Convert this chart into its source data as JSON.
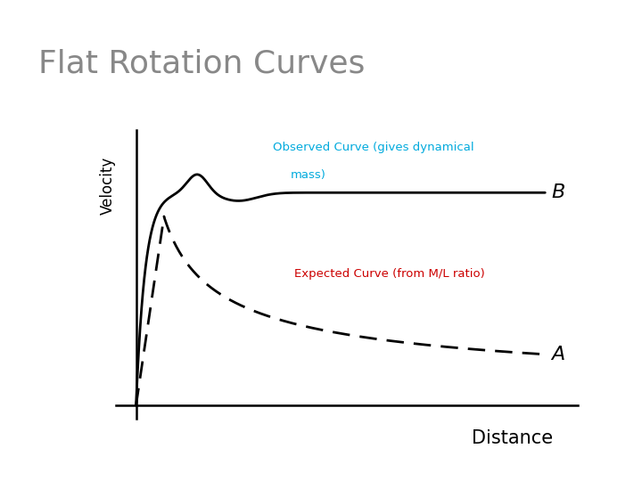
{
  "title": "Flat Rotation Curves",
  "title_color": "#888888",
  "title_fontsize": 26,
  "xlabel": "Distance",
  "ylabel": "Velocity",
  "xlabel_fontsize": 15,
  "ylabel_fontsize": 12,
  "background_color": "#ffffff",
  "observed_label_line1": "Observed Curve (gives dynamical",
  "observed_label_line2": "mass)",
  "observed_label_color": "#00aadd",
  "expected_label": "Expected Curve (from M/L ratio)",
  "expected_label_color": "#cc0000",
  "point_B_label": "B",
  "point_A_label": "A",
  "curve_color": "#000000",
  "axis_color": "#000000",
  "slide_bg": "#ffffff",
  "slide_border": "#cccccc"
}
